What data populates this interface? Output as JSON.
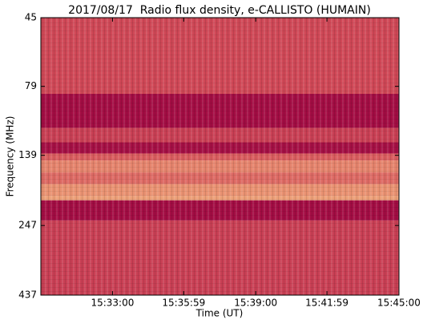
{
  "chart_data": {
    "type": "heatmap",
    "title": "2017/08/17  Radio flux density, e-CALLISTO (HUMAIN)",
    "xlabel": "Time (UT)",
    "ylabel": "Frequency (MHz)",
    "xlim": [
      "15:30:00",
      "15:45:00"
    ],
    "xticks": [
      "15:33:00",
      "15:35:59",
      "15:39:00",
      "15:41:59",
      "15:45:00"
    ],
    "ylim": [
      45,
      437
    ],
    "yticks": [
      45,
      79,
      139,
      247,
      437
    ],
    "yscale": "log",
    "yinvert": true,
    "bands": [
      45,
      84,
      111,
      125,
      137,
      145,
      160,
      176,
      194,
      201,
      237,
      437
    ],
    "values": [
      0.45,
      0.08,
      0.4,
      0.1,
      0.55,
      0.7,
      0.6,
      0.75,
      0.8,
      0.08,
      0.4
    ],
    "colormap": [
      "#9a0040",
      "#d6505a",
      "#fdd38a"
    ]
  }
}
